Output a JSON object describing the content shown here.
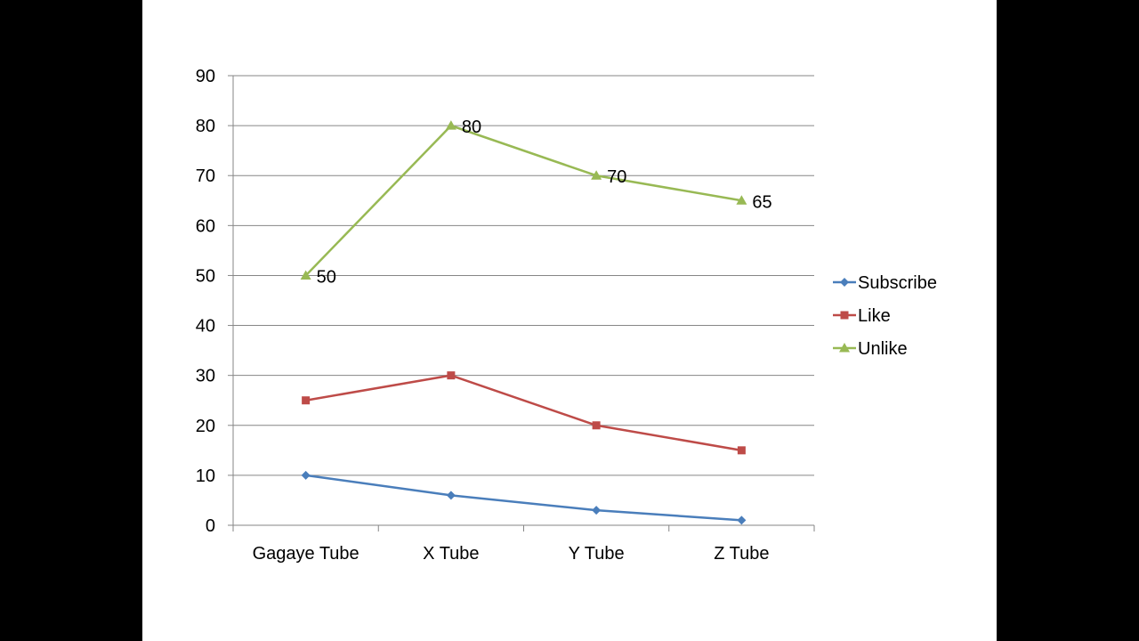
{
  "chart_data": {
    "type": "line",
    "categories": [
      "Gagaye Tube",
      "X Tube",
      "Y Tube",
      "Z Tube"
    ],
    "series": [
      {
        "name": "Subscribe",
        "values": [
          10,
          6,
          3,
          1
        ],
        "color": "#4a7ebb",
        "marker": "diamond",
        "show_labels": false
      },
      {
        "name": "Like",
        "values": [
          25,
          30,
          20,
          15
        ],
        "color": "#be4b48",
        "marker": "square",
        "show_labels": false
      },
      {
        "name": "Unlike",
        "values": [
          50,
          80,
          70,
          65
        ],
        "color": "#98b954",
        "marker": "triangle",
        "show_labels": true
      }
    ],
    "ylim": [
      0,
      90
    ],
    "yticks": [
      0,
      10,
      20,
      30,
      40,
      50,
      60,
      70,
      80,
      90
    ],
    "grid": true,
    "legend": "right",
    "title": "",
    "xlabel": "",
    "ylabel": ""
  }
}
